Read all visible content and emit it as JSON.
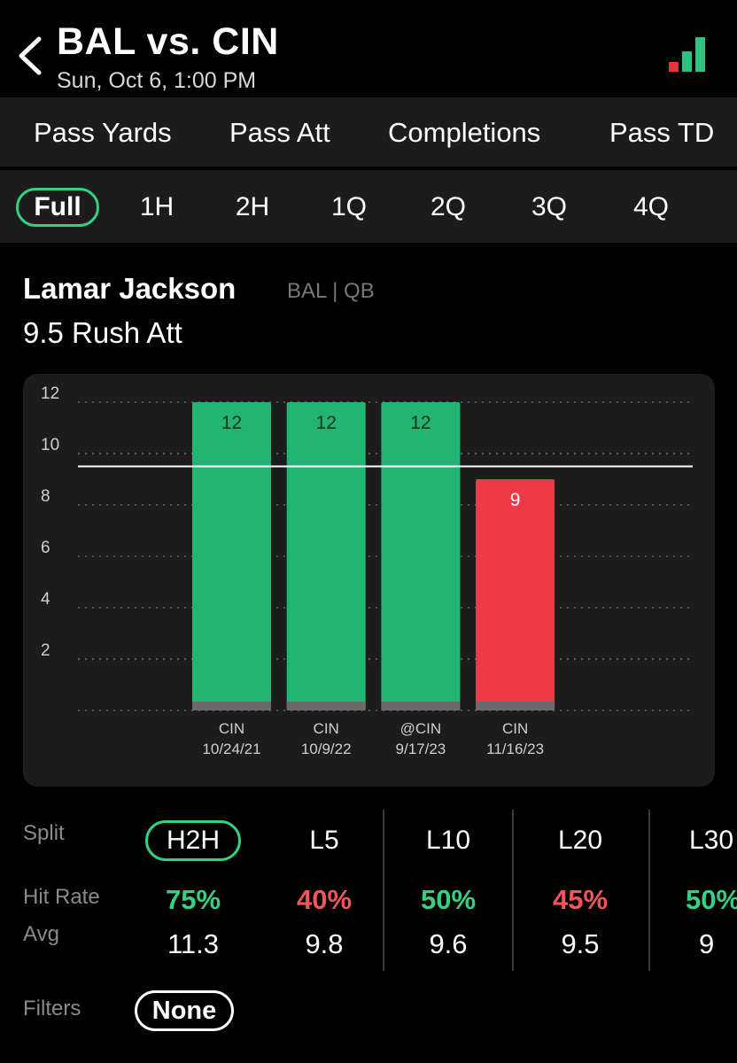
{
  "header": {
    "title": "BAL vs. CIN",
    "subtitle": "Sun, Oct 6, 1:00 PM",
    "back_icon": "chevron-left-icon",
    "signal_icon": "bar-chart-icon",
    "signal_colors": [
      "#e8323c",
      "#2ec27e",
      "#2ec27e"
    ]
  },
  "stat_tabs": [
    "Pass Yards",
    "Pass Att",
    "Completions",
    "Pass TD"
  ],
  "period_tabs": {
    "items": [
      "Full",
      "1H",
      "2H",
      "1Q",
      "2Q",
      "3Q",
      "4Q"
    ],
    "selected": "Full"
  },
  "player": {
    "name": "Lamar Jackson",
    "team_pos": "BAL | QB",
    "prop": "9.5 Rush Att"
  },
  "chart_data": {
    "type": "bar",
    "categories": [
      "CIN\n10/24/21",
      "CIN\n10/9/22",
      "@CIN\n9/17/23",
      "CIN\n11/16/23"
    ],
    "category_lines": [
      [
        "CIN",
        "10/24/21"
      ],
      [
        "CIN",
        "10/9/22"
      ],
      [
        "@CIN",
        "9/17/23"
      ],
      [
        "CIN",
        "11/16/23"
      ]
    ],
    "values": [
      12,
      12,
      12,
      9
    ],
    "data_labels": [
      "12",
      "12",
      "12",
      "9"
    ],
    "y_ticks": [
      2,
      4,
      6,
      8,
      10,
      12
    ],
    "y_tick_labels": [
      "2",
      "4",
      "6",
      "8",
      "10",
      "12"
    ],
    "ylim": [
      0,
      12
    ],
    "line_value": 9.5,
    "grid": true,
    "colors": {
      "over": "#21b473",
      "under": "#ee3a46",
      "line": "#ffffff"
    }
  },
  "split": {
    "labels": {
      "split": "Split",
      "hit_rate": "Hit Rate",
      "avg": "Avg"
    },
    "columns": [
      {
        "name": "H2H",
        "hit_rate": "75%",
        "avg": "11.3",
        "hit_color": "#34d183",
        "active": true
      },
      {
        "name": "L5",
        "hit_rate": "40%",
        "avg": "9.8",
        "hit_color": "#f2555a",
        "active": false
      },
      {
        "name": "L10",
        "hit_rate": "50%",
        "avg": "9.6",
        "hit_color": "#34d183",
        "active": false
      },
      {
        "name": "L20",
        "hit_rate": "45%",
        "avg": "9.5",
        "hit_color": "#f2555a",
        "active": false
      },
      {
        "name": "L30",
        "hit_rate": "50%",
        "avg": "9",
        "hit_color": "#34d183",
        "active": false
      }
    ]
  },
  "filters": {
    "label": "Filters",
    "value": "None"
  }
}
